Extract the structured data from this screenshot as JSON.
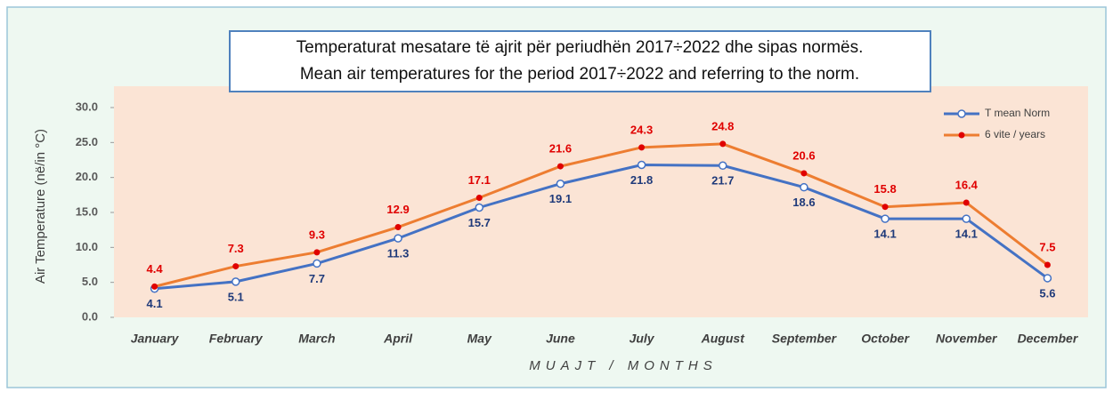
{
  "chart_data": {
    "type": "line",
    "title": "Temperaturat mesatare të ajrit për periudhën 2017÷2022 dhe sipas normës.",
    "subtitle": "Mean air temperatures  for the period 2017÷2022 and referring  to the norm.",
    "y_label": "Air Temperature (në/in °C)",
    "x_label": "MUAJT / MONTHS",
    "categories": [
      "January",
      "February",
      "March",
      "April",
      "May",
      "June",
      "July",
      "August",
      "September",
      "October",
      "November",
      "December"
    ],
    "series": [
      {
        "name": "T mean Norm",
        "color": "#4472c4",
        "label_color": "#1f3a7a",
        "values": [
          4.1,
          5.1,
          7.7,
          11.3,
          15.7,
          19.1,
          21.8,
          21.7,
          18.6,
          14.1,
          14.1,
          5.6
        ]
      },
      {
        "name": "6 vite / years",
        "color": "#ed7d31",
        "label_color": "#e00000",
        "values": [
          4.4,
          7.3,
          9.3,
          12.9,
          17.1,
          21.6,
          24.3,
          24.8,
          20.6,
          15.8,
          16.4,
          7.5
        ]
      }
    ],
    "ylim": [
      0,
      30
    ],
    "yticks": [
      {
        "value": 0,
        "label": "0.0"
      },
      {
        "value": 5,
        "label": "5.0"
      },
      {
        "value": 10,
        "label": "10.0"
      },
      {
        "value": 15,
        "label": "15.0"
      },
      {
        "value": 20,
        "label": "20.0"
      },
      {
        "value": 25,
        "label": "25.0"
      },
      {
        "value": 30,
        "label": "30.0"
      }
    ],
    "legend": "top-right"
  }
}
